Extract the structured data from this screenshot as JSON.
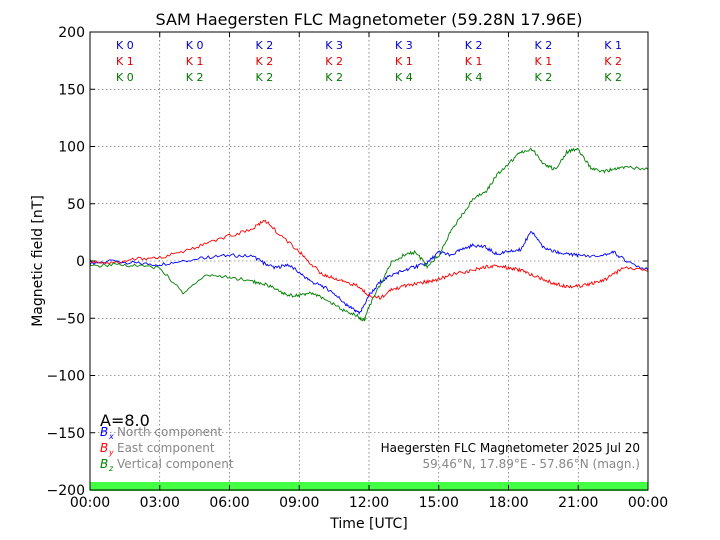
{
  "chart_data": {
    "type": "line",
    "title": "SAM Haegersten FLC Magnetometer (59.28N 17.96E)",
    "xlabel": "Time [UTC]",
    "ylabel": "Magnetic field [nT]",
    "xlim": [
      0,
      24
    ],
    "ylim": [
      -200,
      200
    ],
    "grid": true,
    "x_ticks": [
      "00:00",
      "03:00",
      "06:00",
      "09:00",
      "12:00",
      "15:00",
      "18:00",
      "21:00",
      "00:00"
    ],
    "y_ticks": [
      "200",
      "150",
      "100",
      "50",
      "0",
      "−50",
      "−100",
      "−150",
      "−200"
    ],
    "k_indices": {
      "rows": [
        {
          "color": "#0000cc",
          "values": [
            "K 0",
            "K 0",
            "K 2",
            "K 3",
            "K 3",
            "K 2",
            "K 2",
            "K 1"
          ]
        },
        {
          "color": "#dd0000",
          "values": [
            "K 1",
            "K 1",
            "K 2",
            "K 2",
            "K 1",
            "K 1",
            "K 1",
            "K 2"
          ]
        },
        {
          "color": "#007700",
          "values": [
            "K 0",
            "K 2",
            "K 2",
            "K 2",
            "K 4",
            "K 4",
            "K 2",
            "K 2"
          ]
        }
      ]
    },
    "a_index": "A=8.0",
    "legend": [
      {
        "symbol": "B",
        "sub": "x",
        "label": "North component",
        "color": "#0000ff"
      },
      {
        "symbol": "B",
        "sub": "y",
        "label": "East component",
        "color": "#ff0000"
      },
      {
        "symbol": "B",
        "sub": "z",
        "label": "Vertical component",
        "color": "#008000"
      }
    ],
    "info_line1": "Haegersten FLC Magnetometer 2025 Jul 20",
    "info_line2": "59.46°N, 17.89°E - 57.86°N (magn.)",
    "activity_bar_color": "#44ff44",
    "series": [
      {
        "name": "North component",
        "color": "#0000ff",
        "x": [
          0,
          1,
          2,
          3,
          4,
          5,
          6,
          7,
          7.5,
          8,
          8.5,
          9,
          9.5,
          10,
          10.5,
          11,
          11.3,
          11.6,
          12,
          12.5,
          13,
          13.5,
          14,
          14.5,
          15,
          15.5,
          16,
          16.5,
          17,
          17.5,
          18,
          18.5,
          19,
          19.5,
          20,
          20.5,
          21,
          22,
          22.5,
          23,
          24
        ],
        "y": [
          -2,
          0,
          -2,
          -3,
          0,
          3,
          5,
          4,
          -2,
          -6,
          -3,
          -10,
          -18,
          -22,
          -28,
          -38,
          -42,
          -46,
          -30,
          -18,
          -12,
          -8,
          -5,
          -2,
          8,
          5,
          10,
          14,
          12,
          6,
          8,
          10,
          26,
          12,
          8,
          6,
          5,
          4,
          8,
          1,
          -8
        ]
      },
      {
        "name": "East component",
        "color": "#ff0000",
        "x": [
          0,
          1,
          2,
          3,
          4,
          5,
          6,
          7,
          7.5,
          8,
          9,
          9.5,
          10,
          10.5,
          11,
          11.5,
          12,
          12.5,
          13,
          13.5,
          14,
          14.5,
          15,
          15.5,
          16,
          16.5,
          17,
          17.5,
          18,
          18.5,
          19,
          19.5,
          20,
          20.5,
          21,
          21.5,
          22,
          22.5,
          23,
          24
        ],
        "y": [
          0,
          -2,
          2,
          3,
          8,
          15,
          22,
          28,
          36,
          26,
          8,
          -2,
          -12,
          -15,
          -18,
          -22,
          -30,
          -32,
          -25,
          -22,
          -20,
          -18,
          -16,
          -12,
          -10,
          -8,
          -5,
          -4,
          -6,
          -8,
          -12,
          -16,
          -20,
          -22,
          -22,
          -20,
          -18,
          -12,
          -5,
          -9
        ]
      },
      {
        "name": "Vertical component",
        "color": "#008000",
        "x": [
          0,
          1,
          2,
          3,
          4,
          5,
          6,
          7,
          7.5,
          8,
          8.5,
          9,
          9.5,
          10,
          10.5,
          11,
          11.5,
          11.8,
          12,
          12.5,
          13,
          13.5,
          14,
          14.5,
          15,
          15.5,
          16,
          16.5,
          17,
          17.5,
          18,
          18.5,
          19,
          19.5,
          20,
          20.5,
          21,
          21.5,
          22,
          22.5,
          23,
          24
        ],
        "y": [
          -5,
          -3,
          -4,
          -6,
          -28,
          -12,
          -14,
          -18,
          -20,
          -25,
          -30,
          -30,
          -28,
          -32,
          -38,
          -44,
          -48,
          -52,
          -40,
          -20,
          0,
          5,
          8,
          -5,
          5,
          25,
          40,
          55,
          60,
          75,
          85,
          95,
          98,
          85,
          80,
          95,
          98,
          82,
          78,
          80,
          82,
          80
        ]
      }
    ]
  }
}
